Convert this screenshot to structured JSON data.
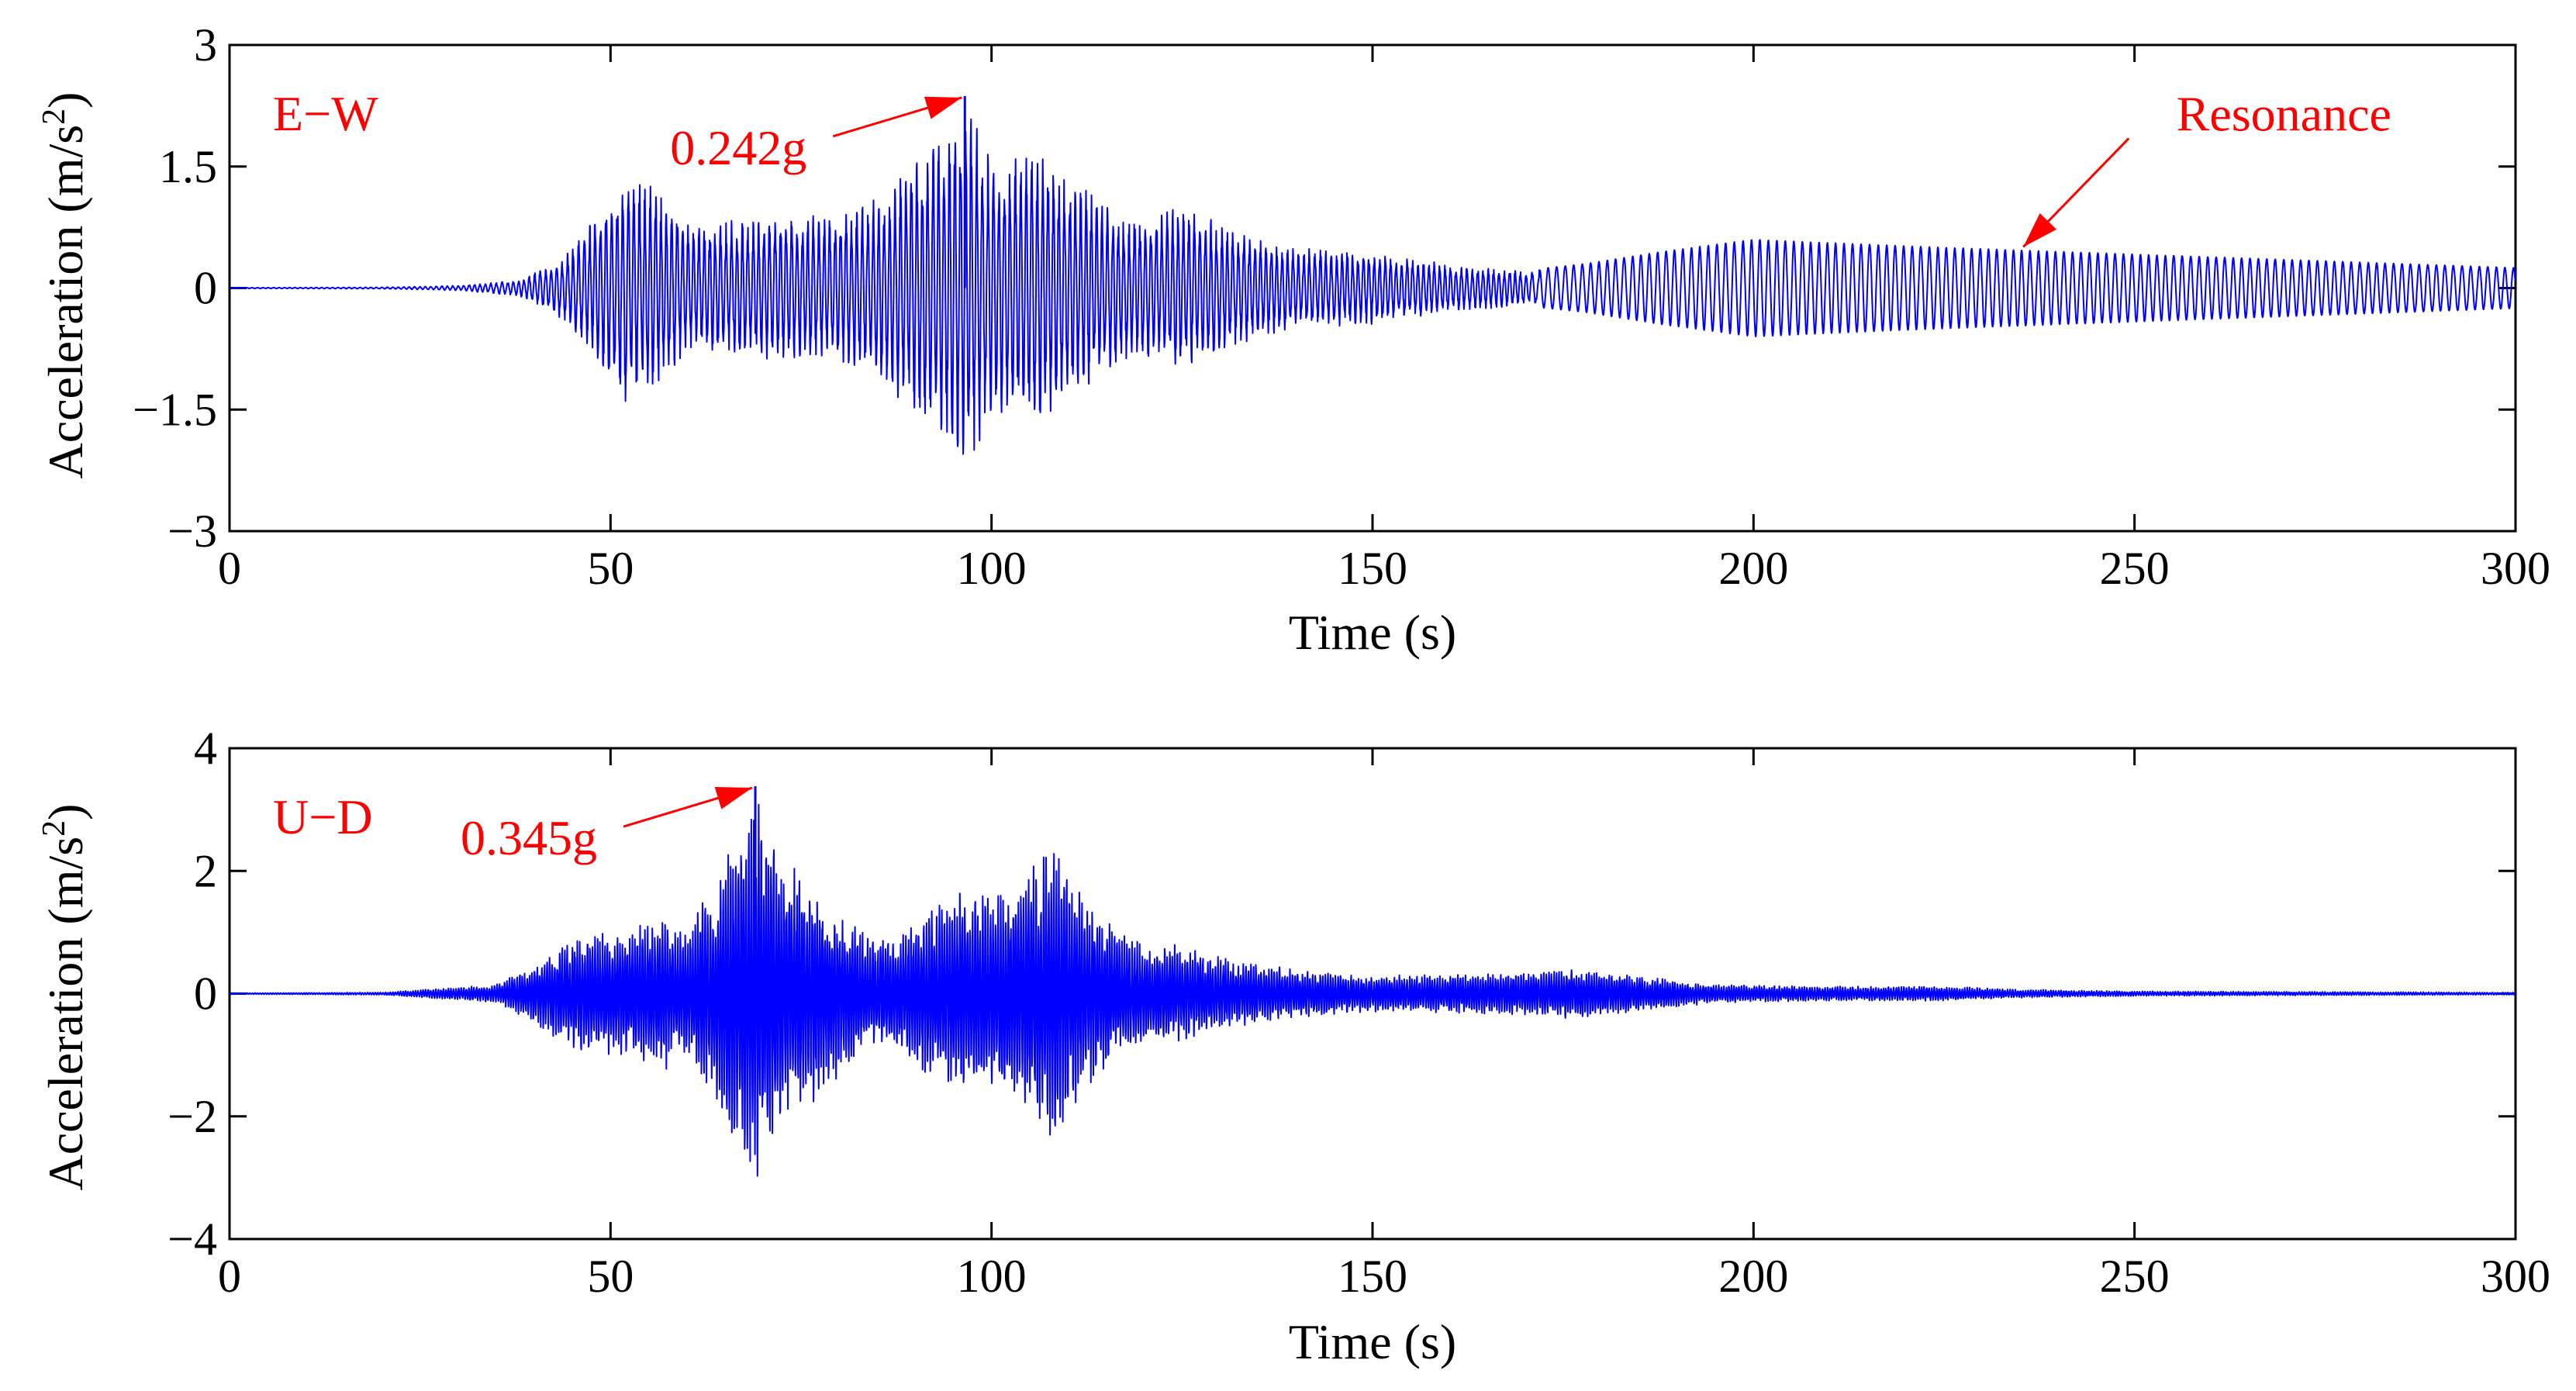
{
  "chart_data": [
    {
      "type": "line",
      "title": "",
      "xlabel": "Time (s)",
      "ylabel": "Acceleration (m/s2)",
      "ylabel_parts": {
        "base": "Acceleration (m/s",
        "sup": "2",
        "close": ")"
      },
      "xlim": [
        0,
        300
      ],
      "ylim": [
        -3,
        3
      ],
      "x_ticks": [
        0,
        50,
        100,
        150,
        200,
        250,
        300
      ],
      "y_ticks": [
        -3,
        -1.5,
        0,
        1.5,
        3
      ],
      "x_tick_labels": [
        "0",
        "50",
        "100",
        "150",
        "200",
        "250",
        "300"
      ],
      "y_tick_labels": [
        "−3",
        "−1.5",
        "0",
        "1.5",
        "3"
      ],
      "grid": false,
      "series_color": "#0000ff",
      "annotation_color": "#ff0000",
      "component_label": "E−W",
      "peak": {
        "label": "0.242g",
        "time": 96.5,
        "value": 2.37
      },
      "resonance": {
        "label": "Resonance",
        "time": 235,
        "value": 0.45
      },
      "envelope": [
        [
          0,
          0.005
        ],
        [
          20,
          0.01
        ],
        [
          30,
          0.03
        ],
        [
          38,
          0.1
        ],
        [
          44,
          0.4
        ],
        [
          48,
          0.9
        ],
        [
          52,
          1.45
        ],
        [
          56,
          1.3
        ],
        [
          60,
          0.8
        ],
        [
          66,
          0.85
        ],
        [
          72,
          0.9
        ],
        [
          80,
          0.9
        ],
        [
          86,
          1.2
        ],
        [
          90,
          1.6
        ],
        [
          95,
          2.05
        ],
        [
          96.5,
          2.37
        ],
        [
          100,
          1.6
        ],
        [
          106,
          1.7
        ],
        [
          112,
          1.3
        ],
        [
          118,
          0.9
        ],
        [
          125,
          1.0
        ],
        [
          132,
          0.75
        ],
        [
          140,
          0.5
        ],
        [
          150,
          0.45
        ],
        [
          160,
          0.3
        ],
        [
          170,
          0.22
        ],
        [
          178,
          0.3
        ],
        [
          188,
          0.45
        ],
        [
          200,
          0.6
        ],
        [
          212,
          0.55
        ],
        [
          225,
          0.5
        ],
        [
          240,
          0.45
        ],
        [
          255,
          0.4
        ],
        [
          270,
          0.35
        ],
        [
          285,
          0.3
        ],
        [
          300,
          0.25
        ]
      ],
      "frequency": [
        [
          0,
          1.4
        ],
        [
          170,
          1.4
        ],
        [
          172,
          0.9
        ],
        [
          300,
          0.9
        ]
      ]
    },
    {
      "type": "line",
      "title": "",
      "xlabel": "Time (s)",
      "ylabel": "Acceleration (m/s2)",
      "ylabel_parts": {
        "base": "Acceleration (m/s",
        "sup": "2",
        "close": ")"
      },
      "xlim": [
        0,
        300
      ],
      "ylim": [
        -4,
        4
      ],
      "x_ticks": [
        0,
        50,
        100,
        150,
        200,
        250,
        300
      ],
      "y_ticks": [
        -4,
        -2,
        0,
        2,
        4
      ],
      "x_tick_labels": [
        "0",
        "50",
        "100",
        "150",
        "200",
        "250",
        "300"
      ],
      "y_tick_labels": [
        "−4",
        "−2",
        "0",
        "2",
        "4"
      ],
      "grid": false,
      "series_color": "#0000ff",
      "annotation_color": "#ff0000",
      "component_label": "U−D",
      "peak": {
        "label": "0.345g",
        "time": 69,
        "value": 3.38
      },
      "envelope": [
        [
          0,
          0.01
        ],
        [
          20,
          0.02
        ],
        [
          25,
          0.06
        ],
        [
          35,
          0.15
        ],
        [
          40,
          0.5
        ],
        [
          46,
          1.0
        ],
        [
          52,
          1.0
        ],
        [
          56,
          1.3
        ],
        [
          60,
          1.1
        ],
        [
          64,
          1.9
        ],
        [
          69,
          3.38
        ],
        [
          72,
          2.4
        ],
        [
          78,
          1.6
        ],
        [
          84,
          0.9
        ],
        [
          88,
          1.0
        ],
        [
          92,
          1.4
        ],
        [
          96,
          1.7
        ],
        [
          100,
          1.6
        ],
        [
          104,
          1.9
        ],
        [
          108,
          2.5
        ],
        [
          112,
          1.6
        ],
        [
          118,
          0.9
        ],
        [
          124,
          0.8
        ],
        [
          130,
          0.6
        ],
        [
          140,
          0.4
        ],
        [
          150,
          0.3
        ],
        [
          160,
          0.32
        ],
        [
          170,
          0.35
        ],
        [
          176,
          0.42
        ],
        [
          185,
          0.3
        ],
        [
          195,
          0.15
        ],
        [
          210,
          0.12
        ],
        [
          225,
          0.12
        ],
        [
          235,
          0.07
        ],
        [
          250,
          0.04
        ],
        [
          275,
          0.03
        ],
        [
          300,
          0.02
        ]
      ],
      "frequency": [
        [
          0,
          3.0
        ],
        [
          300,
          3.0
        ]
      ]
    }
  ]
}
